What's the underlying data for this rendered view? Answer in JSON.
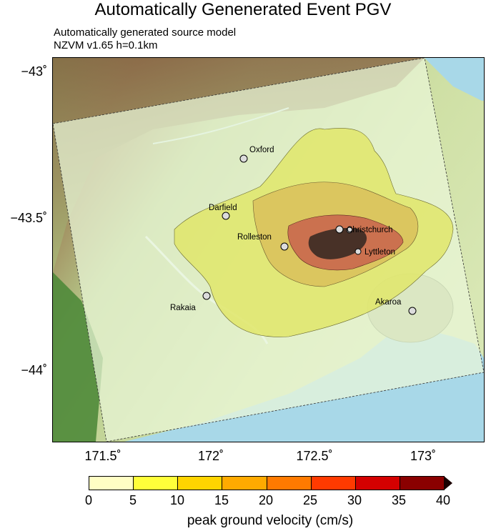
{
  "title": "Automatically Genenerated Event PGV",
  "subtitle_line1": "Automatically generated source model",
  "subtitle_line2": "NZVM v1.65 h=0.1km",
  "lat_ticks": [
    "−43˚",
    "−43.5˚",
    "−44˚"
  ],
  "lon_ticks": [
    "171.5˚",
    "172˚",
    "172.5˚",
    "173˚"
  ],
  "towns": [
    "Oxford",
    "Darfield",
    "Rolleston",
    "Christchurch",
    "Lyttleton",
    "Rakaia",
    "Akaroa"
  ],
  "colorbar": {
    "label": "peak ground velocity (cm/s)",
    "ticks": [
      "0",
      "5",
      "10",
      "15",
      "20",
      "25",
      "30",
      "35",
      "40"
    ],
    "colors": [
      "#fffec4",
      "#ffff3a",
      "#ffd400",
      "#ffaa00",
      "#ff7a00",
      "#ff3a00",
      "#d40000",
      "#8a0000"
    ],
    "overflow_color": "#1a0000"
  },
  "colors": {
    "sea": "#a8d8e8",
    "model_domain": "#eaf6d8",
    "pgv_low": "#e6ec74",
    "pgv_mid": "#d8c85a",
    "pgv_high": "#cf6a50",
    "pgv_peak": "#3a2a22"
  }
}
